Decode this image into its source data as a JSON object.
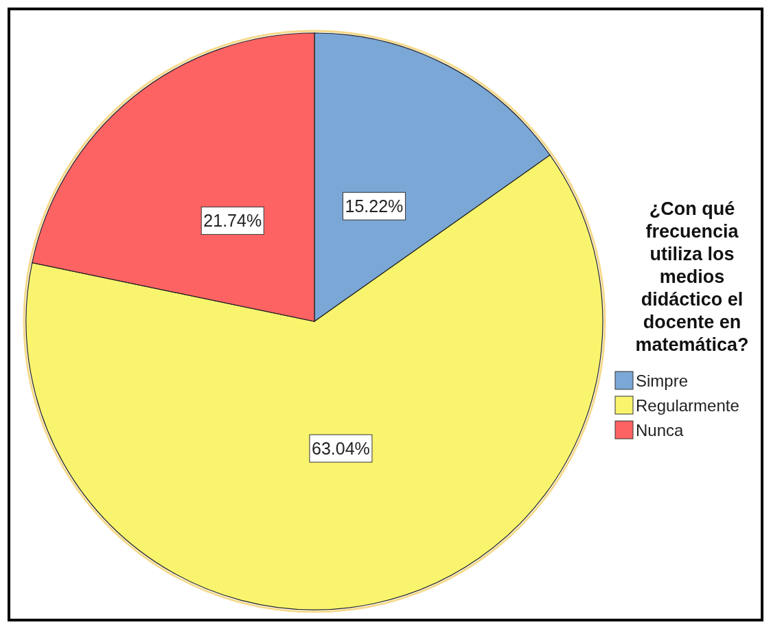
{
  "chart_data": {
    "type": "pie",
    "legend_title": "¿Con qué frecuencia utiliza los medios didáctico el docente en matemática?",
    "categories": [
      "Simpre",
      "Regularmente",
      "Nunca"
    ],
    "values": [
      15.22,
      63.04,
      21.74
    ],
    "colors": [
      "#7aa7d6",
      "#f9f46e",
      "#fe6363"
    ],
    "value_labels": [
      "15.22%",
      "63.04%",
      "21.74%"
    ],
    "legend": "right"
  }
}
